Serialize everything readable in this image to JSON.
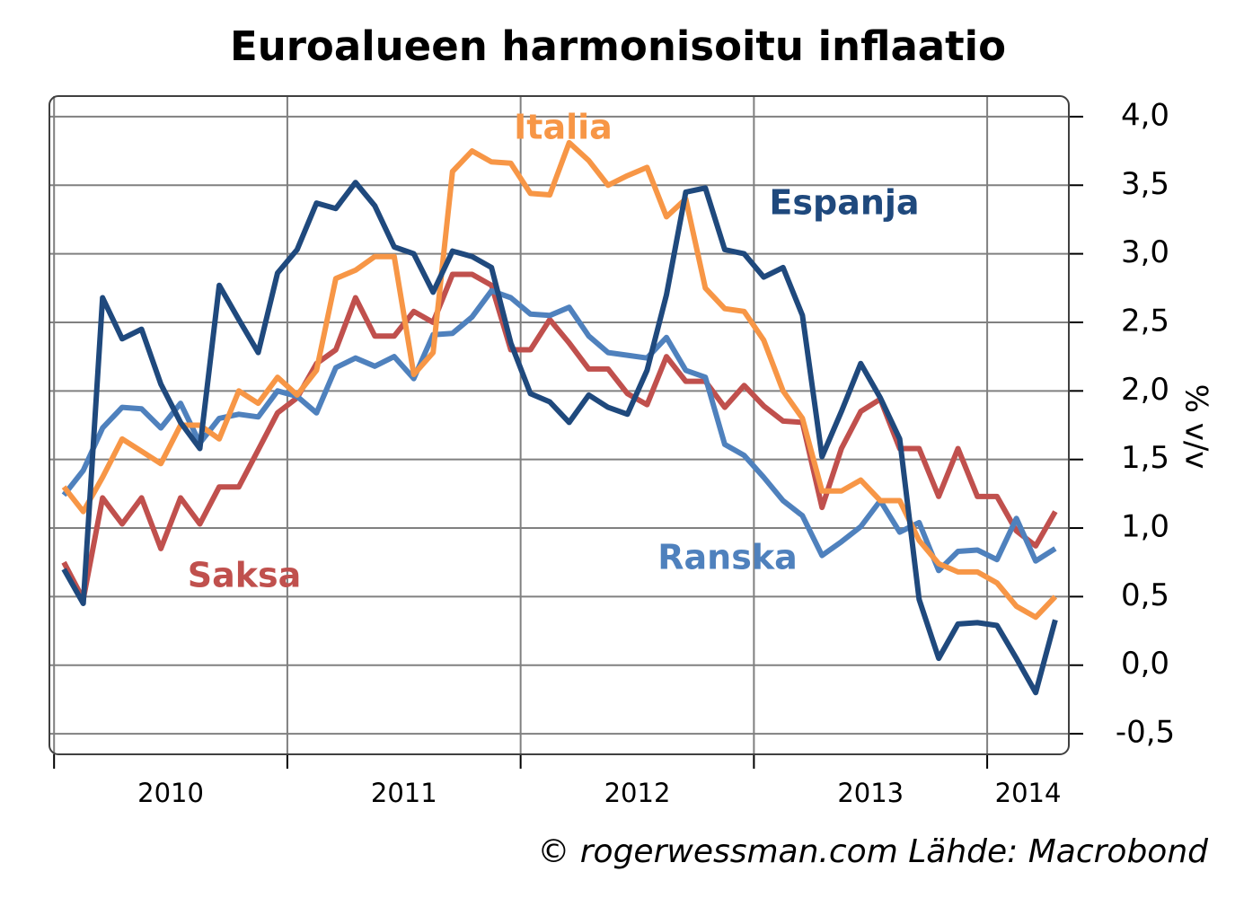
{
  "chart_data": {
    "type": "line",
    "title": "Euroalueen harmonisoitu inflaatio",
    "y_label": "% v/v",
    "source": "© rogerwessman.com Lähde: Macrobond",
    "grid": true,
    "xlim": [
      2009.98,
      2014.35
    ],
    "xticks": [
      2010,
      2011,
      2012,
      2013,
      2014
    ],
    "ylim": [
      -0.65,
      4.15
    ],
    "yticks": [
      {
        "value": -0.5,
        "label": "-0,5"
      },
      {
        "value": 0,
        "label": "0,0"
      },
      {
        "value": 0.5,
        "label": "0,5"
      },
      {
        "value": 1,
        "label": "1,0"
      },
      {
        "value": 1.5,
        "label": "1,5"
      },
      {
        "value": 2,
        "label": "2,0"
      },
      {
        "value": 2.5,
        "label": "2,5"
      },
      {
        "value": 3,
        "label": "3,0"
      },
      {
        "value": 3.5,
        "label": "3,5"
      },
      {
        "value": 4,
        "label": "4,0"
      }
    ],
    "x": [
      2010.042,
      2010.125,
      2010.208,
      2010.292,
      2010.375,
      2010.458,
      2010.542,
      2010.625,
      2010.708,
      2010.792,
      2010.875,
      2010.958,
      2011.042,
      2011.125,
      2011.208,
      2011.292,
      2011.375,
      2011.458,
      2011.542,
      2011.625,
      2011.708,
      2011.792,
      2011.875,
      2011.958,
      2012.042,
      2012.125,
      2012.208,
      2012.292,
      2012.375,
      2012.458,
      2012.542,
      2012.625,
      2012.708,
      2012.792,
      2012.875,
      2012.958,
      2013.042,
      2013.125,
      2013.208,
      2013.292,
      2013.375,
      2013.458,
      2013.542,
      2013.625,
      2013.708,
      2013.792,
      2013.875,
      2013.958,
      2014.042,
      2014.125,
      2014.208,
      2014.292
    ],
    "series": [
      {
        "name": "Saksa",
        "color": "#c0504d",
        "values": [
          0.75,
          0.48,
          1.22,
          1.03,
          1.22,
          0.85,
          1.22,
          1.03,
          1.3,
          1.3,
          1.57,
          1.84,
          1.95,
          2.2,
          2.3,
          2.68,
          2.4,
          2.4,
          2.58,
          2.5,
          2.85,
          2.85,
          2.77,
          2.3,
          2.3,
          2.52,
          2.35,
          2.16,
          2.16,
          1.98,
          1.9,
          2.25,
          2.07,
          2.07,
          1.88,
          2.04,
          1.89,
          1.78,
          1.77,
          1.15,
          1.58,
          1.85,
          1.94,
          1.58,
          1.58,
          1.23,
          1.58,
          1.23,
          1.23,
          0.98,
          0.87,
          1.12
        ]
      },
      {
        "name": "Ranska",
        "color": "#4f81bd",
        "values": [
          1.24,
          1.42,
          1.73,
          1.88,
          1.87,
          1.73,
          1.91,
          1.62,
          1.8,
          1.83,
          1.81,
          2.0,
          1.96,
          1.84,
          2.17,
          2.24,
          2.18,
          2.25,
          2.09,
          2.41,
          2.42,
          2.54,
          2.73,
          2.68,
          2.56,
          2.55,
          2.61,
          2.4,
          2.28,
          2.26,
          2.24,
          2.39,
          2.15,
          2.1,
          1.61,
          1.53,
          1.37,
          1.2,
          1.09,
          0.8,
          0.9,
          1.01,
          1.2,
          0.97,
          1.04,
          0.69,
          0.83,
          0.84,
          0.77,
          1.07,
          0.76,
          0.85
        ]
      },
      {
        "name": "Italia",
        "color": "#f79646",
        "values": [
          1.3,
          1.12,
          1.37,
          1.65,
          1.56,
          1.47,
          1.75,
          1.75,
          1.65,
          2.0,
          1.91,
          2.1,
          1.97,
          2.15,
          2.82,
          2.88,
          2.98,
          2.98,
          2.12,
          2.28,
          3.6,
          3.75,
          3.67,
          3.66,
          3.44,
          3.43,
          3.81,
          3.68,
          3.5,
          3.57,
          3.63,
          3.27,
          3.4,
          2.75,
          2.6,
          2.58,
          2.37,
          2.0,
          1.8,
          1.27,
          1.27,
          1.35,
          1.2,
          1.2,
          0.91,
          0.74,
          0.68,
          0.68,
          0.6,
          0.43,
          0.35,
          0.5
        ]
      },
      {
        "name": "Espanja",
        "color": "#1f497d",
        "values": [
          0.7,
          0.45,
          2.68,
          2.38,
          2.45,
          2.05,
          1.77,
          1.58,
          2.77,
          2.52,
          2.28,
          2.86,
          3.03,
          3.37,
          3.33,
          3.52,
          3.35,
          3.05,
          3.0,
          2.72,
          3.02,
          2.98,
          2.9,
          2.35,
          1.98,
          1.92,
          1.77,
          1.97,
          1.88,
          1.83,
          2.15,
          2.7,
          3.45,
          3.48,
          3.03,
          3.0,
          2.83,
          2.9,
          2.55,
          1.52,
          1.85,
          2.2,
          1.95,
          1.65,
          0.48,
          0.05,
          0.3,
          0.31,
          0.29,
          0.05,
          -0.2,
          0.33
        ]
      }
    ]
  }
}
